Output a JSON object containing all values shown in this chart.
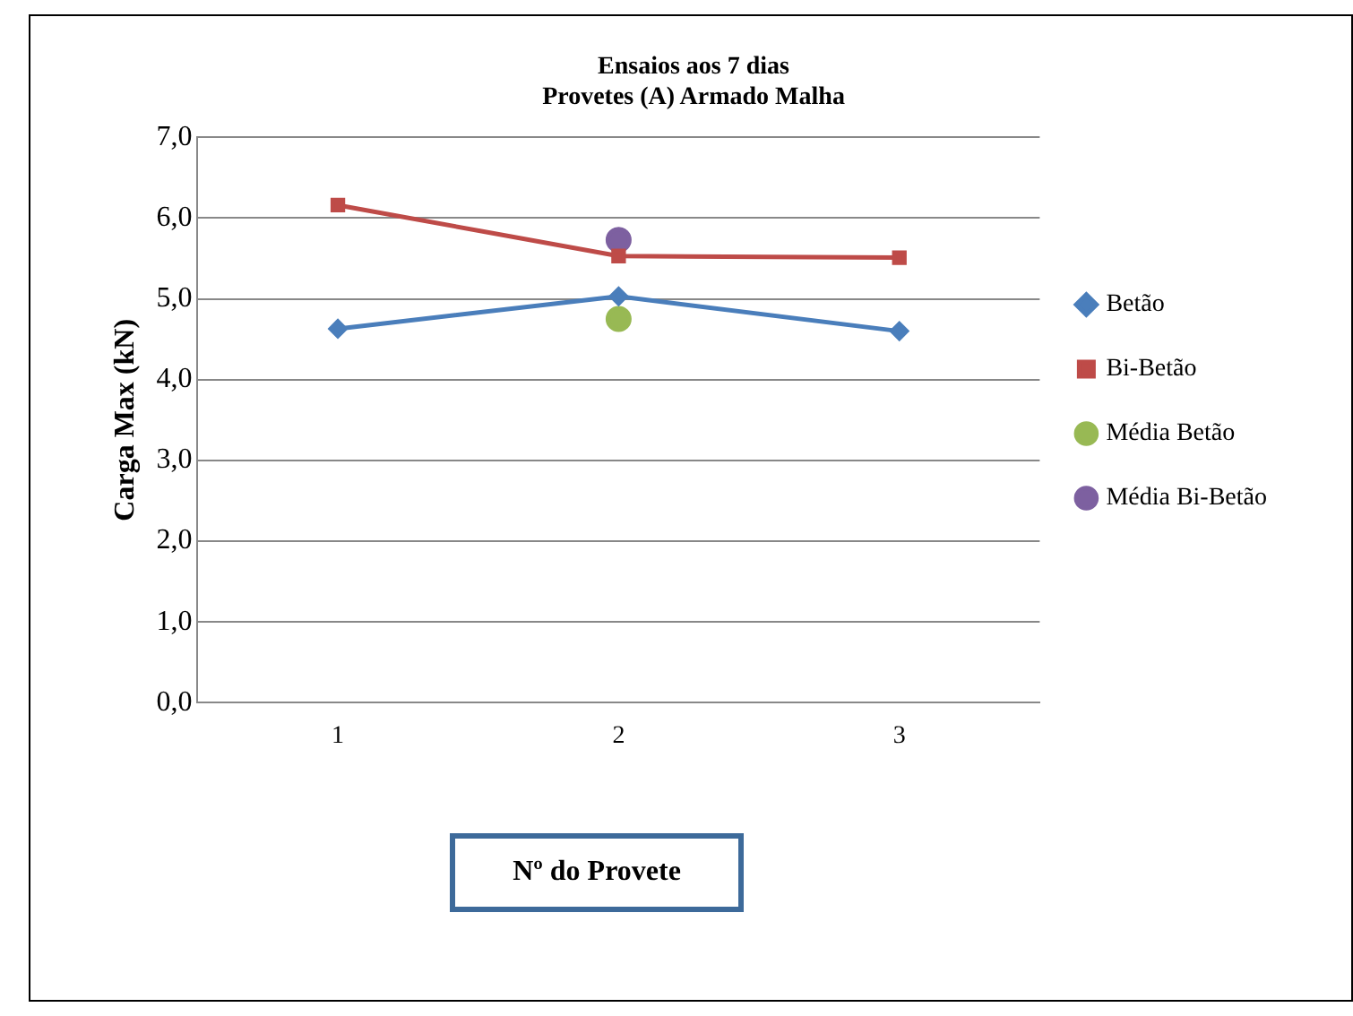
{
  "chart_data": {
    "type": "line",
    "title": [
      "Ensaios aos 7 dias",
      "Provetes (A) Armado Malha"
    ],
    "xlabel": "Nº do Provete",
    "ylabel": "Carga Max (kN)",
    "categories": [
      "1",
      "2",
      "3"
    ],
    "series": [
      {
        "name": "Betão",
        "color": "#4a7ebb",
        "marker": "diamond",
        "values": [
          4.63,
          5.03,
          4.6
        ]
      },
      {
        "name": "Bi-Betão",
        "color": "#be4b48",
        "marker": "square",
        "values": [
          6.16,
          5.53,
          5.51
        ]
      },
      {
        "name": "Média Betão",
        "color": "#98b954",
        "marker": "circle",
        "values": [
          null,
          4.75,
          null
        ]
      },
      {
        "name": "Média Bi-Betão",
        "color": "#7d60a0",
        "marker": "circle",
        "values": [
          null,
          5.73,
          null
        ]
      }
    ],
    "ylim": [
      0,
      7
    ],
    "yticks": [
      {
        "value": 0,
        "label": "0,0"
      },
      {
        "value": 1,
        "label": "1,0"
      },
      {
        "value": 2,
        "label": "2,0"
      },
      {
        "value": 3,
        "label": "3,0"
      },
      {
        "value": 4,
        "label": "4,0"
      },
      {
        "value": 5,
        "label": "5,0"
      },
      {
        "value": 6,
        "label": "6,0"
      },
      {
        "value": 7,
        "label": "7,0"
      }
    ],
    "grid": "y",
    "legend": "right"
  }
}
